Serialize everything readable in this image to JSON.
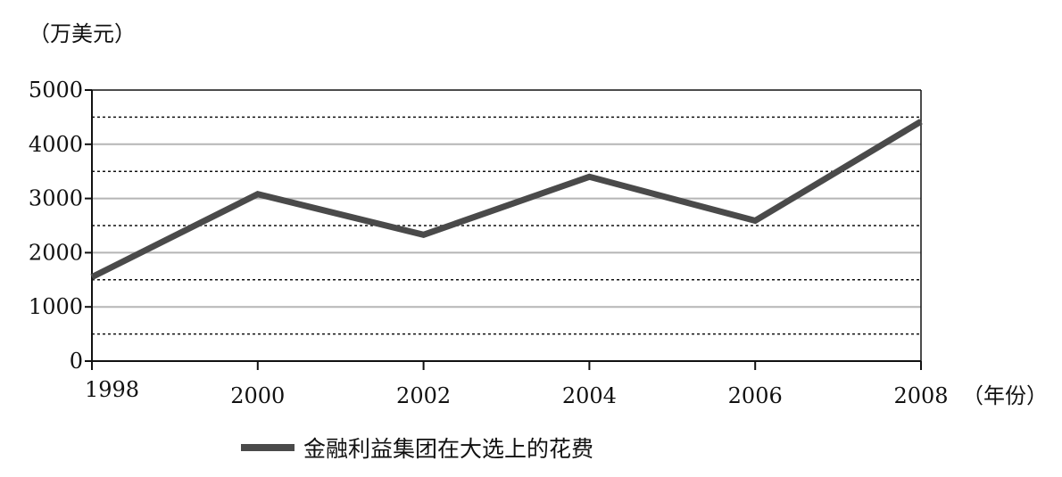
{
  "chart_data": {
    "type": "line",
    "unit_label": "（万美元）",
    "x_unit_label": "（年份）",
    "x": [
      1998,
      2000,
      2002,
      2004,
      2006,
      2008
    ],
    "x_tick_labels": [
      "1998",
      "2000",
      "2002",
      "2004",
      "2006",
      "2008"
    ],
    "y_tick_labels": [
      "0",
      "1000",
      "2000",
      "3000",
      "4000",
      "5000"
    ],
    "y_ticks": [
      0,
      1000,
      2000,
      3000,
      4000,
      5000
    ],
    "y_minor_gridlines": [
      500,
      1500,
      2500,
      3500,
      4500
    ],
    "ylim": [
      0,
      5000
    ],
    "xlim": [
      1998,
      2008
    ],
    "grid": true,
    "legend_placement": "bottom",
    "series": [
      {
        "name": "金融利益集团在大选上的花费",
        "values": [
          1550,
          3080,
          2330,
          3400,
          2590,
          4420
        ],
        "color": "#4a4a4a"
      }
    ]
  }
}
